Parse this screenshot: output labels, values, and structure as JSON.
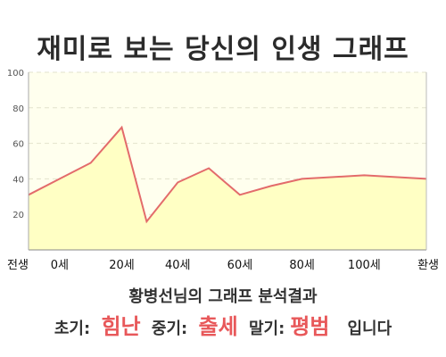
{
  "chart_data": {
    "type": "area",
    "title": "재미로 보는 당신의 인생 그래프",
    "x": [
      -10,
      0,
      10,
      20,
      28,
      38,
      48,
      58,
      68,
      78,
      88,
      98,
      108,
      118
    ],
    "y": [
      31,
      40,
      49,
      69,
      16,
      38,
      46,
      31,
      36,
      40,
      41,
      42,
      41,
      40
    ],
    "ylim": [
      0,
      100
    ],
    "yticks": [
      "100",
      "80",
      "60",
      "40",
      "20"
    ],
    "xtick_labels": [
      "전생",
      "0세",
      "20세",
      "40세",
      "60세",
      "80세",
      "100세",
      "환생"
    ],
    "grid": true,
    "colors": {
      "line": "#e36b6b",
      "fill": "#ffffc4",
      "grid": "#e2e2cc"
    }
  },
  "analysis": {
    "title": "황병선님의 그래프 분석결과",
    "early_label": "초기:",
    "early_value": "힘난",
    "middle_label": "중기:",
    "middle_value": "출세",
    "late_label": "말기:",
    "late_value": "평범",
    "suffix": "입니다"
  }
}
